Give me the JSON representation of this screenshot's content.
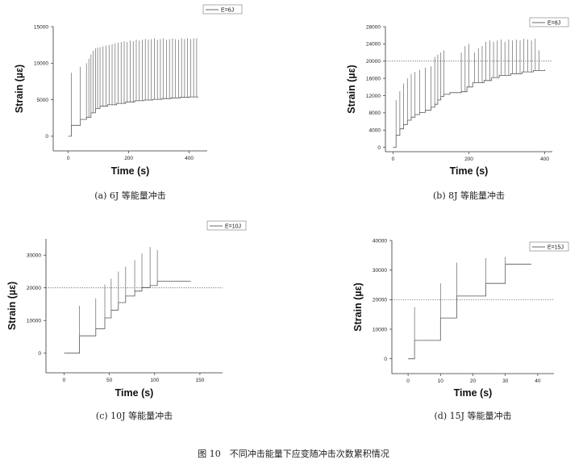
{
  "figure_caption": "图 10　不同冲击能量下应变随冲击次数累积情况",
  "chart_data": [
    {
      "type": "line",
      "caption": "(a) 6J 等能量冲击",
      "legend": "E=6J",
      "xlabel": "Time (s)",
      "ylabel": "Strain (µε)",
      "xlim": [
        -50,
        460
      ],
      "ylim": [
        -2000,
        15000
      ],
      "xticks": [
        0,
        200,
        400
      ],
      "yticks": [
        0,
        5000,
        10000,
        15000
      ],
      "ref_line": null,
      "steps": [
        [
          0,
          0
        ],
        [
          10,
          1500
        ],
        [
          40,
          2300
        ],
        [
          60,
          2600
        ],
        [
          75,
          3200
        ],
        [
          90,
          3800
        ],
        [
          105,
          4100
        ],
        [
          130,
          4300
        ],
        [
          160,
          4500
        ],
        [
          190,
          4700
        ],
        [
          220,
          4850
        ],
        [
          250,
          4950
        ],
        [
          280,
          5050
        ],
        [
          310,
          5150
        ],
        [
          340,
          5250
        ],
        [
          370,
          5320
        ],
        [
          400,
          5380
        ],
        [
          430,
          5400
        ]
      ],
      "spikes": [
        [
          10,
          8700
        ],
        [
          40,
          9500
        ],
        [
          60,
          10000
        ],
        [
          68,
          10600
        ],
        [
          75,
          11200
        ],
        [
          82,
          11700
        ],
        [
          90,
          12000
        ],
        [
          97,
          12100
        ],
        [
          105,
          12200
        ],
        [
          115,
          12300
        ],
        [
          125,
          12400
        ],
        [
          135,
          12500
        ],
        [
          145,
          12600
        ],
        [
          155,
          12700
        ],
        [
          165,
          12800
        ],
        [
          175,
          12900
        ],
        [
          185,
          13000
        ],
        [
          195,
          12900
        ],
        [
          205,
          13100
        ],
        [
          215,
          13000
        ],
        [
          225,
          13200
        ],
        [
          235,
          13100
        ],
        [
          245,
          13200
        ],
        [
          255,
          13300
        ],
        [
          265,
          13200
        ],
        [
          275,
          13300
        ],
        [
          285,
          13400
        ],
        [
          295,
          13200
        ],
        [
          305,
          13300
        ],
        [
          315,
          13400
        ],
        [
          325,
          13200
        ],
        [
          335,
          13300
        ],
        [
          345,
          13400
        ],
        [
          355,
          13300
        ],
        [
          365,
          13200
        ],
        [
          375,
          13400
        ],
        [
          385,
          13300
        ],
        [
          395,
          13400
        ],
        [
          405,
          13300
        ],
        [
          415,
          13400
        ],
        [
          425,
          13400
        ]
      ]
    },
    {
      "type": "line",
      "caption": "(b) 8J 等能量冲击",
      "legend": "E=8J",
      "xlabel": "Time (s)",
      "ylabel": "Strain (µε)",
      "xlim": [
        -20,
        420
      ],
      "ylim": [
        -1000,
        28000
      ],
      "xticks": [
        0,
        200,
        400
      ],
      "yticks": [
        0,
        4000,
        8000,
        12000,
        16000,
        20000,
        24000,
        28000
      ],
      "ref_line": 20000,
      "steps": [
        [
          0,
          0
        ],
        [
          8,
          2800
        ],
        [
          18,
          4300
        ],
        [
          28,
          5300
        ],
        [
          38,
          6300
        ],
        [
          48,
          7000
        ],
        [
          58,
          7600
        ],
        [
          70,
          8100
        ],
        [
          85,
          8600
        ],
        [
          100,
          9300
        ],
        [
          110,
          10000
        ],
        [
          118,
          11000
        ],
        [
          126,
          11800
        ],
        [
          134,
          12300
        ],
        [
          150,
          12700
        ],
        [
          180,
          12900
        ],
        [
          195,
          14000
        ],
        [
          210,
          15000
        ],
        [
          240,
          15500
        ],
        [
          260,
          16200
        ],
        [
          280,
          16700
        ],
        [
          310,
          17100
        ],
        [
          340,
          17500
        ],
        [
          370,
          17800
        ],
        [
          400,
          18000
        ]
      ],
      "spikes": [
        [
          8,
          11000
        ],
        [
          18,
          13000
        ],
        [
          28,
          14800
        ],
        [
          38,
          16000
        ],
        [
          48,
          17000
        ],
        [
          58,
          17500
        ],
        [
          70,
          18000
        ],
        [
          85,
          18500
        ],
        [
          100,
          18800
        ],
        [
          110,
          21000
        ],
        [
          118,
          21500
        ],
        [
          126,
          22000
        ],
        [
          134,
          22500
        ],
        [
          180,
          22000
        ],
        [
          190,
          23500
        ],
        [
          200,
          24000
        ],
        [
          215,
          22000
        ],
        [
          225,
          23000
        ],
        [
          235,
          23500
        ],
        [
          245,
          24500
        ],
        [
          255,
          24800
        ],
        [
          265,
          24500
        ],
        [
          275,
          24800
        ],
        [
          285,
          25000
        ],
        [
          295,
          24500
        ],
        [
          305,
          25000
        ],
        [
          315,
          24800
        ],
        [
          325,
          25000
        ],
        [
          335,
          24800
        ],
        [
          345,
          25200
        ],
        [
          355,
          25000
        ],
        [
          365,
          24800
        ],
        [
          375,
          25200
        ],
        [
          385,
          22500
        ]
      ]
    },
    {
      "type": "line",
      "caption": "(c) 10J 等能量冲击",
      "legend": "E=10J",
      "xlabel": "Time (s)",
      "ylabel": "Strain (µε)",
      "xlim": [
        -20,
        175
      ],
      "ylim": [
        -6000,
        35000
      ],
      "xticks": [
        0,
        50,
        100,
        150
      ],
      "yticks": [
        0,
        10000,
        20000,
        30000
      ],
      "ref_line": 20000,
      "steps": [
        [
          0,
          0
        ],
        [
          17,
          5300
        ],
        [
          35,
          7500
        ],
        [
          45,
          10800
        ],
        [
          52,
          13200
        ],
        [
          60,
          15500
        ],
        [
          68,
          17500
        ],
        [
          78,
          19000
        ],
        [
          86,
          20100
        ],
        [
          95,
          20700
        ],
        [
          103,
          22000
        ],
        [
          140,
          22000
        ]
      ],
      "spikes": [
        [
          17,
          14500
        ],
        [
          35,
          16800
        ],
        [
          45,
          21000
        ],
        [
          52,
          22800
        ],
        [
          60,
          25000
        ],
        [
          68,
          26500
        ],
        [
          78,
          28500
        ],
        [
          86,
          30500
        ],
        [
          95,
          32500
        ],
        [
          103,
          31500
        ]
      ]
    },
    {
      "type": "line",
      "caption": "(d) 15J 等能量冲击",
      "legend": "E=15J",
      "xlabel": "Time (s)",
      "ylabel": "Strain (µε)",
      "xlim": [
        -5,
        45
      ],
      "ylim": [
        -5000,
        40000
      ],
      "xticks": [
        0,
        10,
        20,
        30,
        40
      ],
      "yticks": [
        0,
        10000,
        20000,
        30000,
        40000
      ],
      "ref_line": 20000,
      "steps": [
        [
          0,
          0
        ],
        [
          2,
          6200
        ],
        [
          10,
          13800
        ],
        [
          15,
          21200
        ],
        [
          24,
          25500
        ],
        [
          30,
          32000
        ],
        [
          38,
          32000
        ]
      ],
      "spikes": [
        [
          2,
          17500
        ],
        [
          10,
          25500
        ],
        [
          15,
          32500
        ],
        [
          24,
          34000
        ],
        [
          30,
          34500
        ]
      ]
    }
  ]
}
